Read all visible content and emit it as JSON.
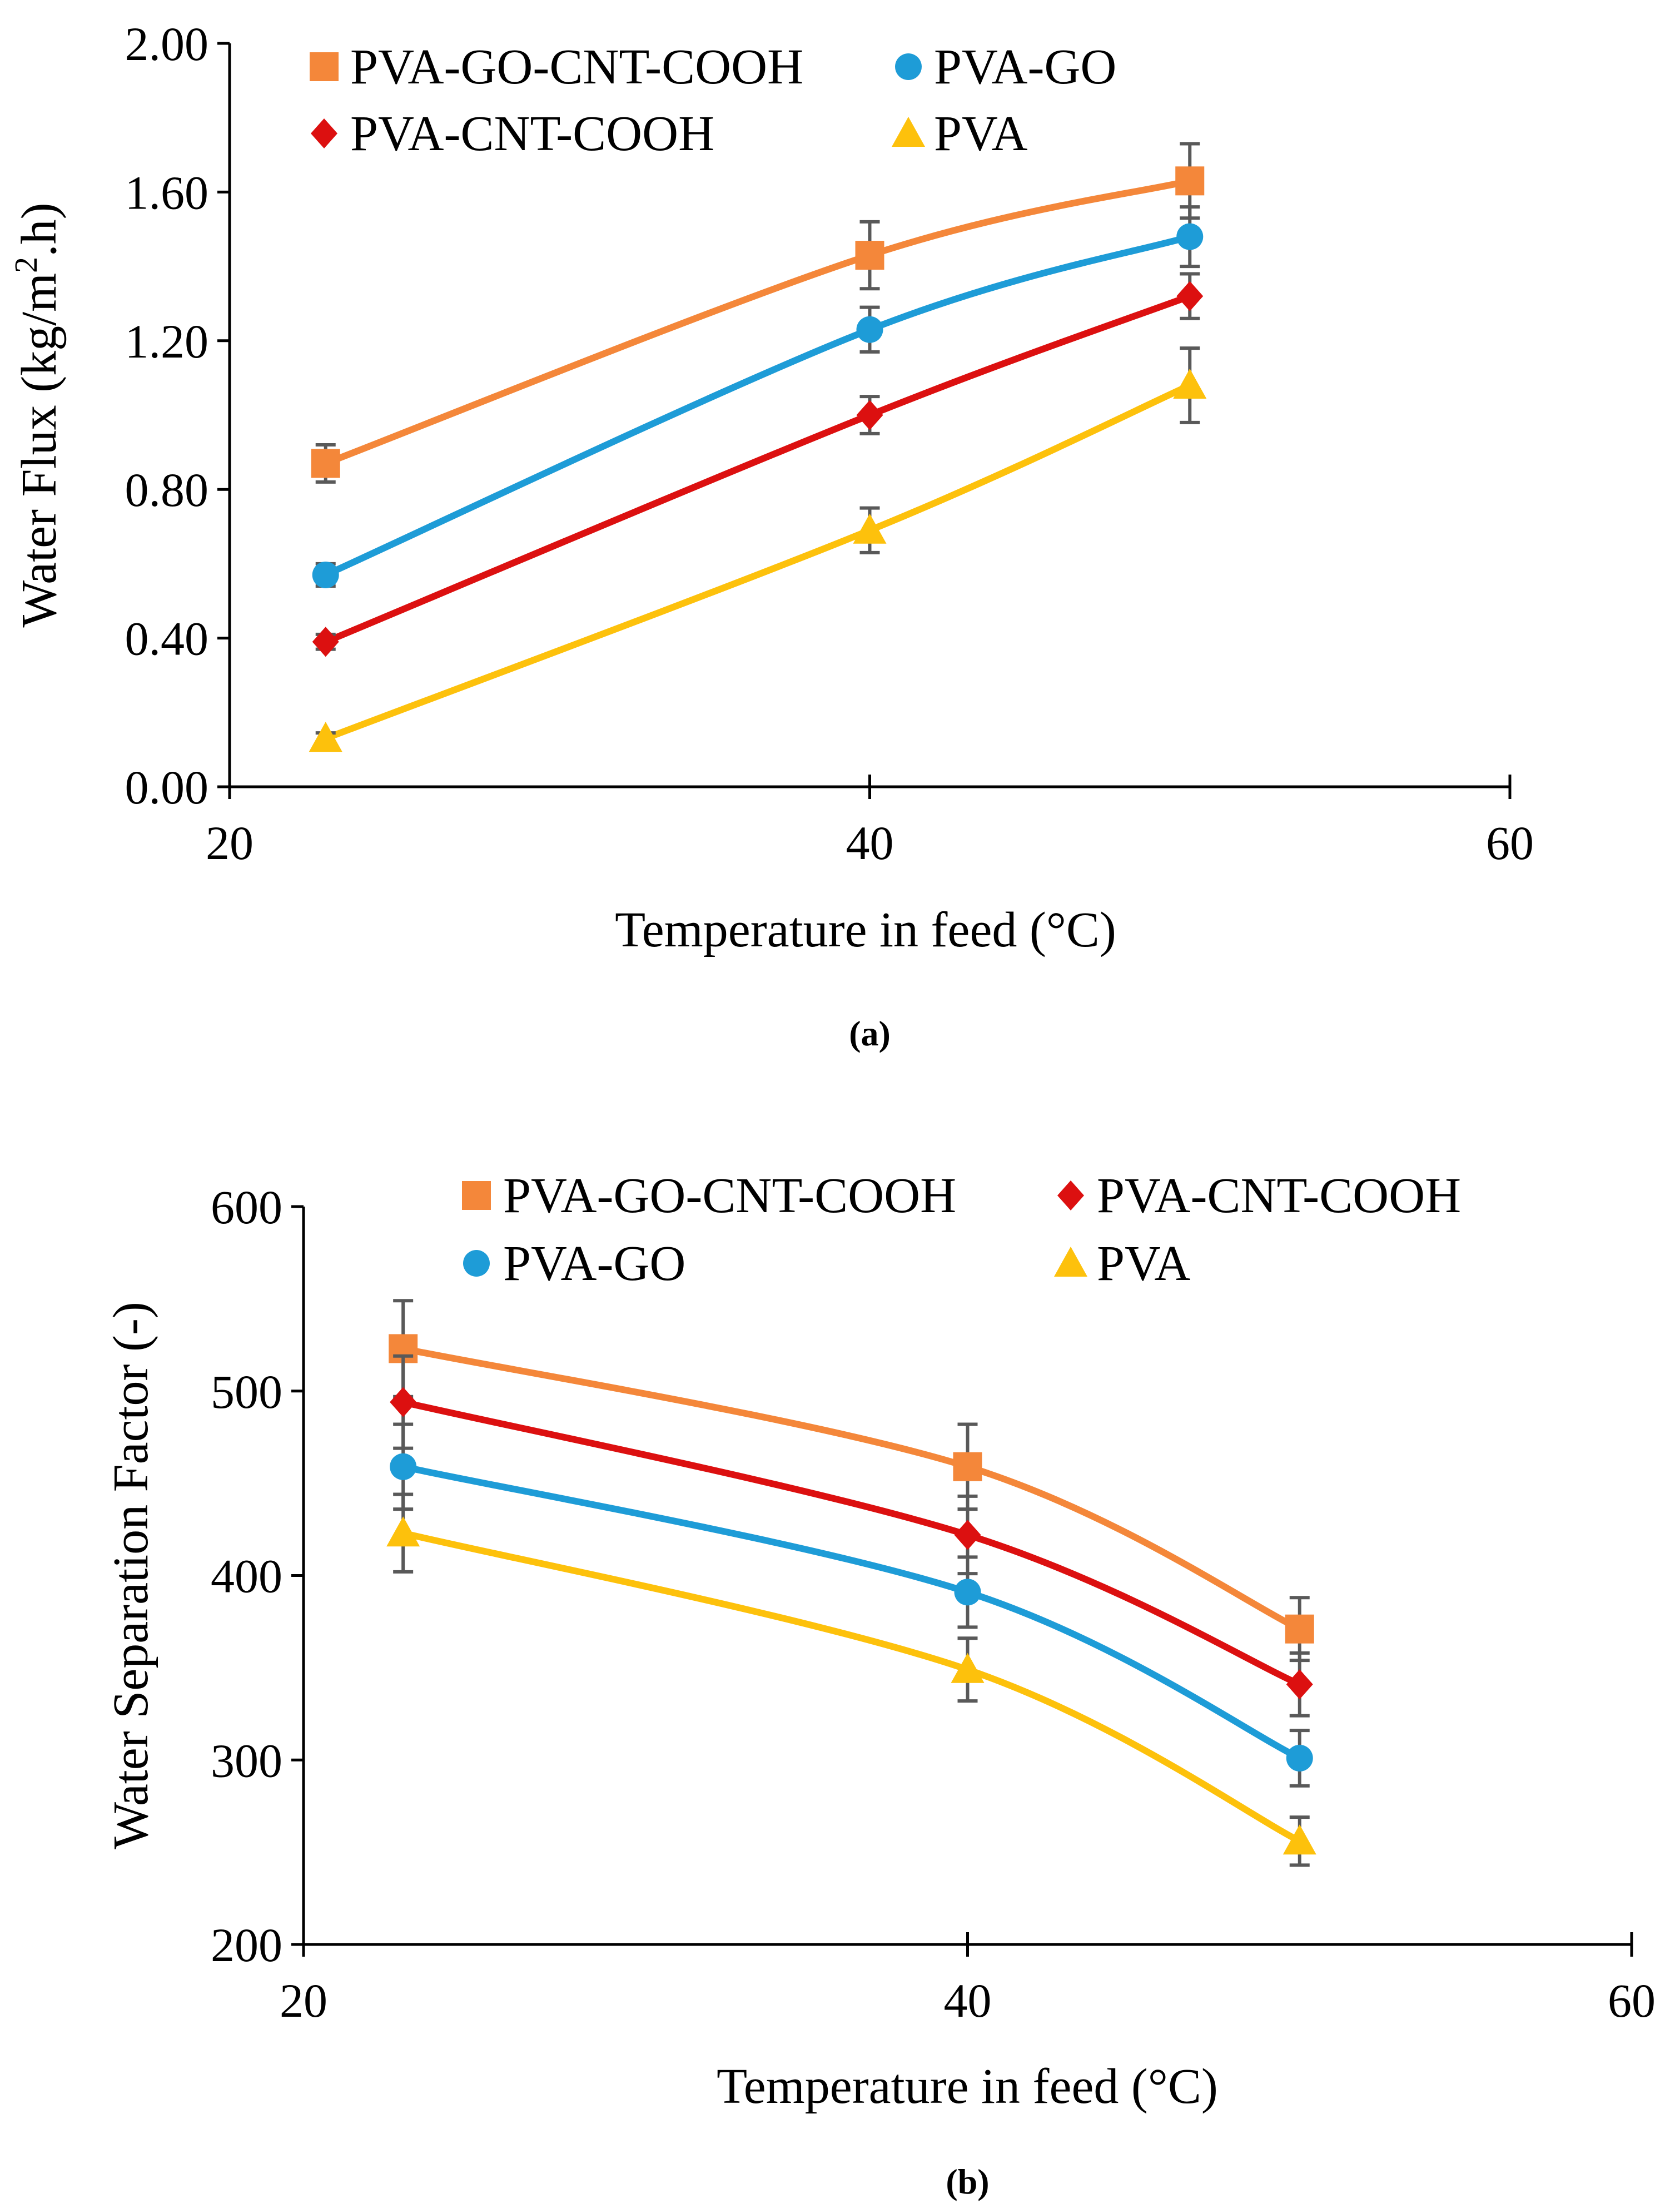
{
  "colors": {
    "PVA-GO-CNT-COOH": "#F4873A",
    "PVA-GO": "#1E9CD7",
    "PVA-CNT-COOH": "#DC1010",
    "PVA": "#FDC10C",
    "axis": "#000000",
    "error_bar": "#595959"
  },
  "chart_data": [
    {
      "type": "line",
      "panel_label": "(a)",
      "xlabel": "Temperature in feed (°C)",
      "ylabel_main": "Water Flux (kg/m",
      "ylabel_sup": "2",
      "ylabel_tail": ".h)",
      "xlim": [
        20,
        60
      ],
      "ylim": [
        0,
        2
      ],
      "xticks": [
        20,
        40,
        60
      ],
      "xtick_labels": [
        "20",
        "40",
        "60"
      ],
      "yticks": [
        0,
        0.4,
        0.8,
        1.2,
        1.6,
        2.0
      ],
      "ytick_labels": [
        "0.00",
        "0.40",
        "0.80",
        "1.20",
        "1.60",
        "2.00"
      ],
      "grid": false,
      "legend_position": "top-left, inside plot, two columns",
      "legend_order": [
        "PVA-GO-CNT-COOH",
        "PVA-GO",
        "PVA-CNT-COOH",
        "PVA"
      ],
      "series": [
        {
          "name": "PVA-GO-CNT-COOH",
          "marker": "square",
          "x": [
            23,
            40,
            50
          ],
          "y": [
            0.87,
            1.43,
            1.63
          ],
          "err": [
            0.05,
            0.09,
            0.1
          ]
        },
        {
          "name": "PVA-GO",
          "marker": "circle",
          "x": [
            23,
            40,
            50
          ],
          "y": [
            0.57,
            1.23,
            1.48
          ],
          "err": [
            0.03,
            0.06,
            0.08
          ]
        },
        {
          "name": "PVA-CNT-COOH",
          "marker": "diamond",
          "x": [
            23,
            40,
            50
          ],
          "y": [
            0.39,
            1.0,
            1.32
          ],
          "err": [
            0.02,
            0.05,
            0.06
          ]
        },
        {
          "name": "PVA",
          "marker": "triangle",
          "x": [
            23,
            40,
            50
          ],
          "y": [
            0.13,
            0.69,
            1.08
          ],
          "err": [
            0.015,
            0.06,
            0.1
          ]
        }
      ]
    },
    {
      "type": "line",
      "panel_label": "(b)",
      "xlabel": "Temperature in feed (°C)",
      "ylabel_main": "Water Separation Factor (-)",
      "ylabel_sup": "",
      "ylabel_tail": "",
      "xlim": [
        20,
        60
      ],
      "ylim": [
        200,
        600
      ],
      "xticks": [
        20,
        40,
        60
      ],
      "xtick_labels": [
        "20",
        "40",
        "60"
      ],
      "yticks": [
        200,
        300,
        400,
        500,
        600
      ],
      "ytick_labels": [
        "200",
        "300",
        "400",
        "500",
        "600"
      ],
      "grid": false,
      "legend_position": "top, inside plot, two columns",
      "legend_order": [
        "PVA-GO-CNT-COOH",
        "PVA-CNT-COOH",
        "PVA-GO",
        "PVA"
      ],
      "series": [
        {
          "name": "PVA-GO-CNT-COOH",
          "marker": "square",
          "x": [
            23,
            40,
            50
          ],
          "y": [
            523,
            459,
            371
          ],
          "err": [
            26,
            23,
            17
          ]
        },
        {
          "name": "PVA-CNT-COOH",
          "marker": "diamond",
          "x": [
            23,
            40,
            50
          ],
          "y": [
            494,
            422,
            341
          ],
          "err": [
            25,
            21,
            17
          ]
        },
        {
          "name": "PVA-GO",
          "marker": "circle",
          "x": [
            23,
            40,
            50
          ],
          "y": [
            459,
            391,
            301
          ],
          "err": [
            23,
            19,
            15
          ]
        },
        {
          "name": "PVA",
          "marker": "triangle",
          "x": [
            23,
            40,
            50
          ],
          "y": [
            423,
            349,
            256
          ],
          "err": [
            21,
            17,
            13
          ]
        }
      ]
    }
  ]
}
